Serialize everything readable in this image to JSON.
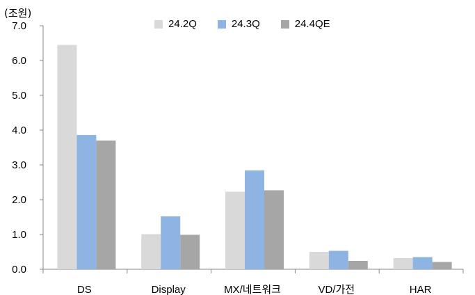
{
  "chart_data": {
    "type": "bar",
    "unit_label": "(조원)",
    "categories": [
      "DS",
      "Display",
      "MX/네트워크",
      "VD/가전",
      "HAR"
    ],
    "series": [
      {
        "name": "24.2Q",
        "color": "#d9d9d9",
        "values": [
          6.45,
          1.01,
          2.23,
          0.5,
          0.32
        ]
      },
      {
        "name": "24.3Q",
        "color": "#8db4e2",
        "values": [
          3.86,
          1.52,
          2.84,
          0.53,
          0.35
        ]
      },
      {
        "name": "24.4QE",
        "color": "#a6a6a6",
        "values": [
          3.7,
          0.99,
          2.27,
          0.24,
          0.21
        ]
      }
    ],
    "yticks": [
      "0.0",
      "1.0",
      "2.0",
      "3.0",
      "4.0",
      "5.0",
      "6.0",
      "7.0"
    ],
    "ylim": [
      0,
      7
    ],
    "grid": false,
    "legend_position": "top"
  }
}
